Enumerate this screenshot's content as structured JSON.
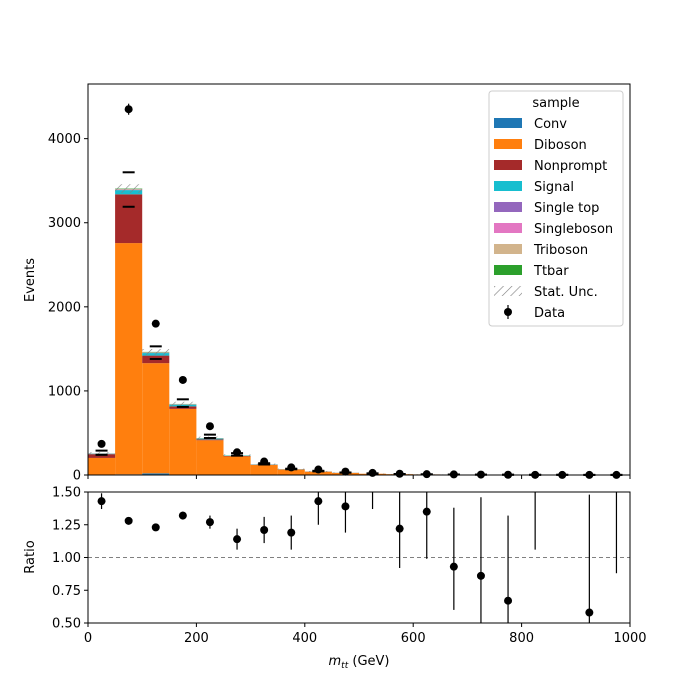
{
  "chart_data": [
    {
      "type": "bar",
      "stacked": true,
      "ylabel": "Events",
      "xlim": [
        0,
        1000
      ],
      "ylim": [
        0,
        4650
      ],
      "yticks": [
        0,
        1000,
        2000,
        3000,
        4000
      ],
      "bin_edges": [
        0,
        50,
        100,
        150,
        200,
        250,
        300,
        350,
        400,
        450,
        500,
        550,
        600,
        650,
        700,
        750,
        800,
        850,
        900,
        950,
        1000
      ],
      "series": [
        {
          "name": "Conv",
          "color": "#1f77b4",
          "values": [
            3,
            8,
            20,
            6,
            3,
            1,
            0,
            0,
            0,
            0,
            0,
            0,
            0,
            0,
            0,
            0,
            0,
            0,
            0,
            0
          ]
        },
        {
          "name": "Diboson",
          "color": "#ff7f0e",
          "values": [
            200,
            2750,
            1310,
            780,
            410,
            220,
            120,
            65,
            40,
            25,
            15,
            10,
            7,
            5,
            4,
            3,
            2,
            2,
            1,
            1
          ]
        },
        {
          "name": "Nonprompt",
          "color": "#a52a2a",
          "values": [
            45,
            580,
            90,
            30,
            10,
            5,
            3,
            2,
            1,
            1,
            0,
            0,
            0,
            0,
            0,
            0,
            0,
            0,
            0,
            0
          ]
        },
        {
          "name": "Signal",
          "color": "#17becf",
          "values": [
            5,
            50,
            30,
            20,
            10,
            5,
            3,
            2,
            1,
            1,
            0,
            0,
            0,
            0,
            0,
            0,
            0,
            0,
            0,
            0
          ]
        },
        {
          "name": "Single top",
          "color": "#9467bd",
          "values": [
            1,
            3,
            2,
            1,
            1,
            0,
            0,
            0,
            0,
            0,
            0,
            0,
            0,
            0,
            0,
            0,
            0,
            0,
            0,
            0
          ]
        },
        {
          "name": "Singleboson",
          "color": "#e377c2",
          "values": [
            1,
            4,
            3,
            2,
            1,
            0,
            0,
            0,
            0,
            0,
            0,
            0,
            0,
            0,
            0,
            0,
            0,
            0,
            0,
            0
          ]
        },
        {
          "name": "Triboson",
          "color": "#d2b48c",
          "values": [
            1,
            5,
            4,
            3,
            2,
            1,
            0,
            0,
            0,
            0,
            0,
            0,
            0,
            0,
            0,
            0,
            0,
            0,
            0,
            0
          ]
        },
        {
          "name": "Ttbar",
          "color": "#2ca02c",
          "values": [
            1,
            6,
            5,
            3,
            2,
            1,
            0,
            0,
            0,
            0,
            0,
            0,
            0,
            0,
            0,
            0,
            0,
            0,
            0,
            0
          ]
        }
      ],
      "stat_unc_label": "Stat. Unc.",
      "data": {
        "name": "Data",
        "values": [
          370,
          4350,
          1800,
          1130,
          580,
          270,
          160,
          90,
          65,
          40,
          25,
          15,
          10,
          7,
          5,
          3,
          2,
          1,
          1,
          1
        ],
        "errors": [
          19,
          66,
          42,
          34,
          24,
          16,
          13,
          10,
          8,
          6,
          5,
          4,
          3,
          3,
          2,
          2,
          1,
          1,
          1,
          1
        ]
      },
      "syst_band": {
        "up": [
          290,
          3600,
          1530,
          900,
          480,
          260,
          140,
          75,
          50,
          30,
          20,
          12,
          8,
          6,
          4,
          3,
          2,
          2,
          1,
          1
        ],
        "down": [
          240,
          3190,
          1380,
          810,
          440,
          230,
          125,
          68,
          43,
          27,
          16,
          10,
          7,
          5,
          4,
          3,
          2,
          2,
          1,
          1
        ]
      },
      "legend": {
        "title": "sample",
        "position": "top-right"
      }
    },
    {
      "type": "scatter",
      "xlabel": "m_{tt} (GeV)",
      "ylabel": "Ratio",
      "xlim": [
        0,
        1000
      ],
      "ylim": [
        0.5,
        1.5
      ],
      "xticks": [
        0,
        200,
        400,
        600,
        800,
        1000
      ],
      "yticks": [
        0.5,
        0.75,
        1.0,
        1.25,
        1.5
      ],
      "ytick_labels": [
        "0.50",
        "0.75",
        "1.00",
        "1.25",
        "1.50"
      ],
      "reference_line": 1.0,
      "x": [
        25,
        75,
        125,
        175,
        225,
        275,
        325,
        375,
        425,
        475,
        525,
        575,
        625,
        675,
        725,
        775,
        825,
        875,
        925,
        975
      ],
      "values": [
        1.43,
        1.28,
        1.23,
        1.32,
        1.27,
        1.14,
        1.21,
        1.19,
        1.43,
        1.39,
        null,
        1.22,
        1.35,
        0.93,
        0.86,
        0.67,
        null,
        null,
        0.58,
        null
      ],
      "err_lo": [
        0.06,
        0.02,
        0.02,
        0.03,
        0.05,
        0.08,
        0.1,
        0.13,
        0.18,
        0.2,
        null,
        0.3,
        0.36,
        0.33,
        0.5,
        0.5,
        null,
        null,
        0.5,
        null
      ],
      "err_hi": [
        0.06,
        0.02,
        0.02,
        0.03,
        0.05,
        0.08,
        0.1,
        0.13,
        0.18,
        0.2,
        null,
        0.3,
        0.36,
        0.45,
        0.6,
        0.65,
        null,
        null,
        0.9,
        null
      ],
      "bar_only": [
        {
          "x": 525,
          "lo": 1.37,
          "hi": 1.5
        },
        {
          "x": 825,
          "lo": 1.06,
          "hi": 1.5
        },
        {
          "x": 975,
          "lo": 0.88,
          "hi": 1.5
        }
      ]
    }
  ]
}
